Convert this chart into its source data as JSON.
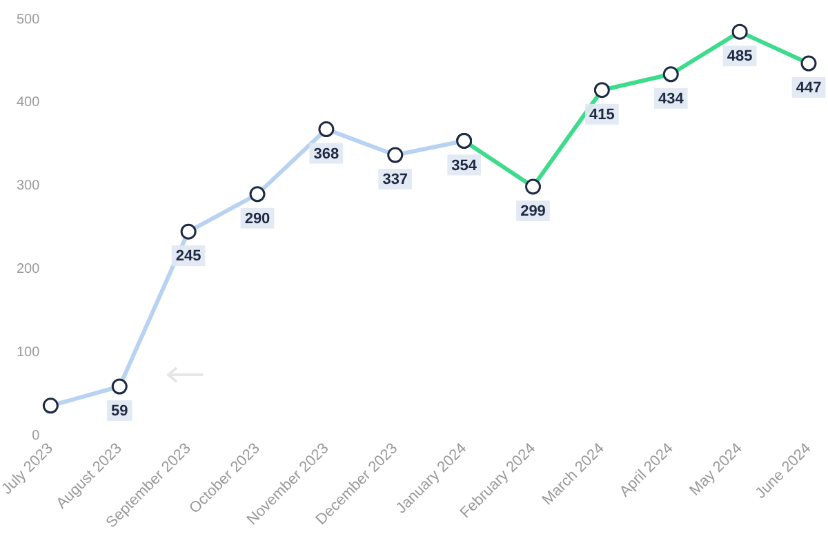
{
  "chart_data": {
    "type": "line",
    "categories": [
      "July 2023",
      "August 2023",
      "September 2023",
      "October 2023",
      "November 2023",
      "December 2023",
      "January 2024",
      "February 2024",
      "March 2024",
      "April 2024",
      "May 2024",
      "June 2024"
    ],
    "series": [
      {
        "color": "#b8d3f2",
        "values": [
          36,
          59,
          245,
          290,
          368,
          337,
          354,
          null,
          null,
          null,
          null,
          null
        ],
        "value_labels": [
          null,
          "59",
          "245",
          "290",
          "368",
          "337",
          null,
          null,
          null,
          null,
          null,
          null
        ]
      },
      {
        "color": "#3ddc8c",
        "values": [
          null,
          null,
          null,
          null,
          null,
          null,
          354,
          299,
          415,
          434,
          485,
          447
        ],
        "value_labels": [
          null,
          null,
          null,
          null,
          null,
          null,
          "354",
          "299",
          "415",
          "434",
          "485",
          "447"
        ]
      }
    ],
    "ylim": [
      0,
      500
    ],
    "yticks": [
      0,
      100,
      200,
      300,
      400,
      500
    ],
    "grid": false,
    "legend": false,
    "marker": "circle",
    "line_style": "solid"
  }
}
